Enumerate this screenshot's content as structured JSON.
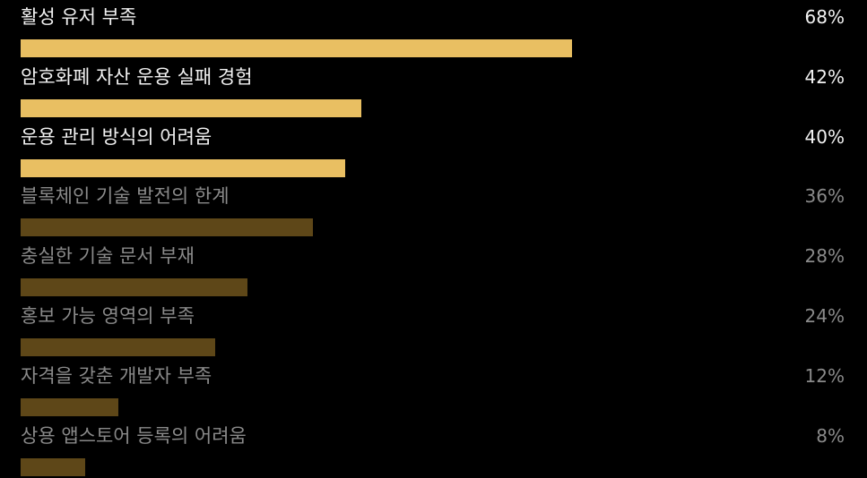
{
  "chart_data": {
    "type": "bar",
    "orientation": "horizontal",
    "title": "",
    "xlabel": "",
    "ylabel": "",
    "xlim": [
      0,
      100
    ],
    "grid": false,
    "highlight_color": "#e9bf62",
    "muted_color": "#5e4718",
    "items": [
      {
        "label": "활성 유저 부족",
        "value": 68,
        "display": "68%",
        "highlight": true
      },
      {
        "label": "암호화폐 자산 운용 실패 경험",
        "value": 42,
        "display": "42%",
        "highlight": true
      },
      {
        "label": "운용 관리 방식의 어려움",
        "value": 40,
        "display": "40%",
        "highlight": true
      },
      {
        "label": "블록체인 기술 발전의 한계",
        "value": 36,
        "display": "36%",
        "highlight": false
      },
      {
        "label": "충실한 기술 문서 부재",
        "value": 28,
        "display": "28%",
        "highlight": false
      },
      {
        "label": "홍보 가능 영역의 부족",
        "value": 24,
        "display": "24%",
        "highlight": false
      },
      {
        "label": "자격을 갖춘 개발자 부족",
        "value": 12,
        "display": "12%",
        "highlight": false
      },
      {
        "label": "상용 앱스토어 등록의 어려움",
        "value": 8,
        "display": "8%",
        "highlight": false
      }
    ]
  }
}
